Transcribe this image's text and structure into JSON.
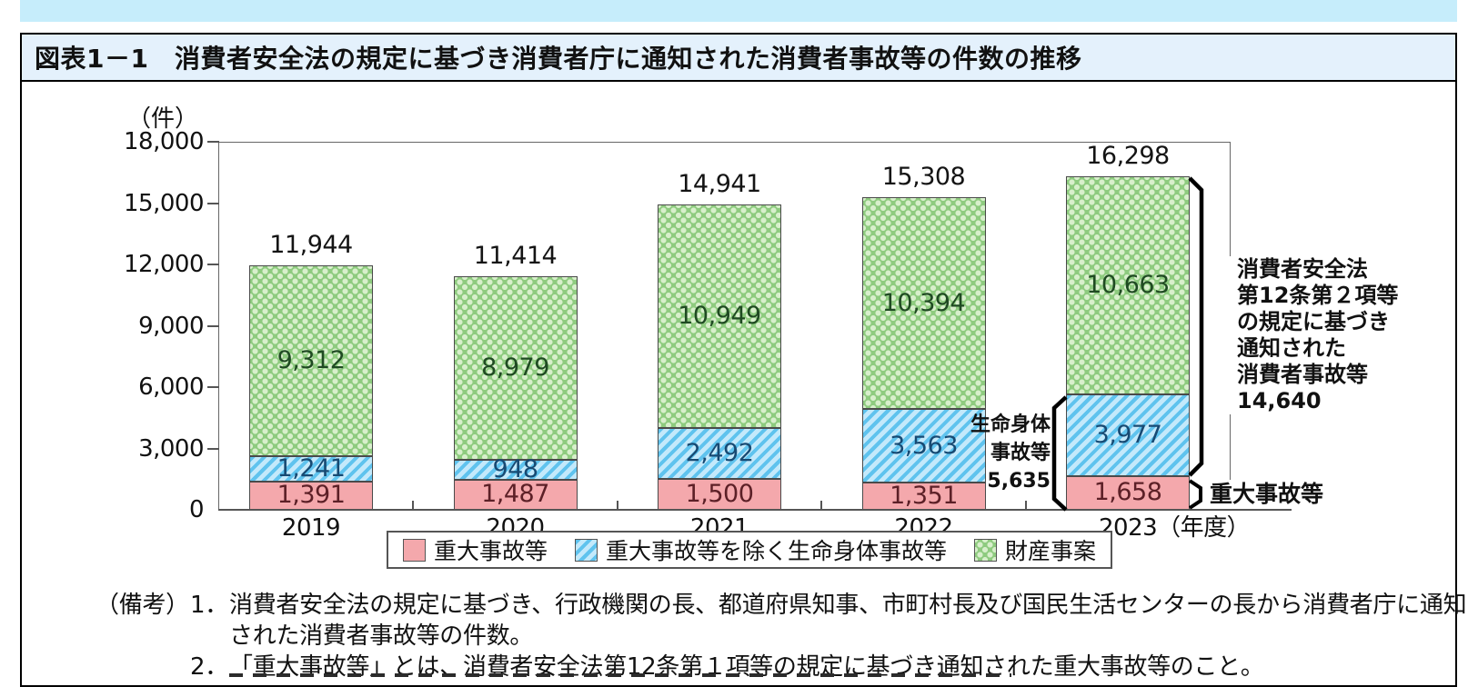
{
  "figure": {
    "title": "図表1－1　消費者安全法の規定に基づき消費者庁に通知された消費者事故等の件数の推移"
  },
  "chart_data": {
    "type": "bar",
    "stacked": true,
    "title": "消費者安全法の規定に基づき消費者庁に通知された消費者事故等の件数の推移",
    "unit_label": "（件）",
    "categories": [
      "2019",
      "2020",
      "2021",
      "2022",
      "2023"
    ],
    "x_axis_suffix": "（年度）",
    "series": [
      {
        "name": "重大事故等",
        "color": "#f4a8ac",
        "values": [
          1391,
          1487,
          1500,
          1351,
          1658
        ]
      },
      {
        "name": "重大事故等を除く生命身体事故等",
        "color": "#5fc3ee",
        "values": [
          1241,
          948,
          2492,
          3563,
          3977
        ]
      },
      {
        "name": "財産事案",
        "color": "#8ecb7f",
        "values": [
          9312,
          8979,
          10949,
          10394,
          10663
        ]
      }
    ],
    "totals": [
      11944,
      11414,
      14941,
      15308,
      16298
    ],
    "ylim": [
      0,
      18000
    ],
    "ytick_step": 3000,
    "ytick_labels": [
      "0",
      "3,000",
      "6,000",
      "9,000",
      "12,000",
      "15,000",
      "18,000"
    ],
    "grid": false,
    "legend_position": "bottom"
  },
  "annotations": {
    "consumer_accidents": "消費者安全法\n第12条第２項等\nの規定に基づき\n通知された\n消費者事故等\n14,640",
    "life_body": "生命身体\n事故等\n5,635",
    "serious": "重大事故等"
  },
  "notes": {
    "label": "（備考）",
    "note1_no": "1．",
    "note1_line1": "消費者安全法の規定に基づき、行政機関の長、都道府県知事、市町村長及び国民生活センターの長から消費者庁に通知",
    "note1_line2": "された消費者事故等の件数。",
    "note2_no": "2．",
    "note2_text": "「重大事故等」とは、消費者安全法第12条第１項等の規定に基づき通知された重大事故等のこと。"
  },
  "colors": {
    "top_strip": "#c6edfb",
    "title_bar_bg": "#e4f1fc",
    "border": "#000000",
    "serious_fill": "#f4a8ac",
    "life_body_fill": "#5fc3ee",
    "property_fill": "#8ecb7f"
  }
}
